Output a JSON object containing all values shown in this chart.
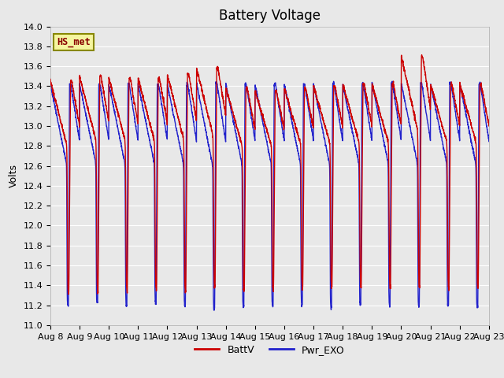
{
  "title": "Battery Voltage",
  "ylabel": "Volts",
  "ylim": [
    11.0,
    14.0
  ],
  "yticks": [
    11.0,
    11.2,
    11.4,
    11.6,
    11.8,
    12.0,
    12.2,
    12.4,
    12.6,
    12.8,
    13.0,
    13.2,
    13.4,
    13.6,
    13.8,
    14.0
  ],
  "x_labels": [
    "Aug 8",
    "Aug 9",
    "Aug 10",
    "Aug 11",
    "Aug 12",
    "Aug 13",
    "Aug 14",
    "Aug 15",
    "Aug 16",
    "Aug 17",
    "Aug 18",
    "Aug 19",
    "Aug 20",
    "Aug 21",
    "Aug 22",
    "Aug 23"
  ],
  "battv_color": "#cc0000",
  "pwr_exo_color": "#2222cc",
  "bg_color": "#e8e8e8",
  "plot_bg_color": "#e8e8e8",
  "grid_color": "#ffffff",
  "legend_label1": "BattV",
  "legend_label2": "Pwr_EXO",
  "annotation_text": "HS_met",
  "annotation_color": "#880000",
  "annotation_bg": "#f5f5a0",
  "annotation_border": "#888800",
  "title_fontsize": 12,
  "axis_fontsize": 9,
  "tick_fontsize": 8,
  "n_days": 15,
  "samples_per_day": 200
}
